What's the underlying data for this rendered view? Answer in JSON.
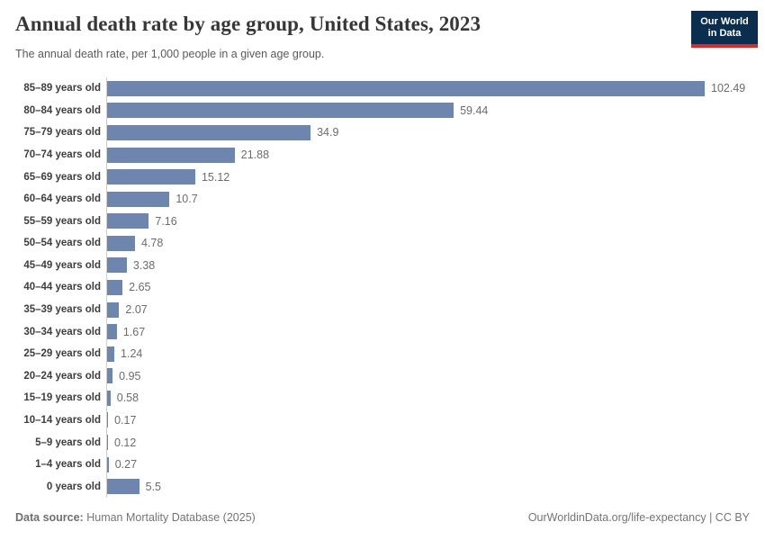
{
  "header": {
    "title": "Annual death rate by age group, United States, 2023",
    "subtitle": "The annual death rate, per 1,000 people in a given age group.",
    "logo": {
      "line1": "Our World",
      "line2": "in Data"
    }
  },
  "chart_data": {
    "type": "bar",
    "orientation": "horizontal",
    "title": "Annual death rate by age group, United States, 2023",
    "xlabel": "",
    "ylabel": "",
    "xlim": [
      0,
      102.49
    ],
    "grid": false,
    "legend": false,
    "bar_color": "#6e85ad",
    "categories": [
      "85–89 years old",
      "80–84 years old",
      "75–79 years old",
      "70–74 years old",
      "65–69 years old",
      "60–64 years old",
      "55–59 years old",
      "50–54 years old",
      "45–49 years old",
      "40–44 years old",
      "35–39 years old",
      "30–34 years old",
      "25–29 years old",
      "20–24 years old",
      "15–19 years old",
      "10–14 years old",
      "5–9 years old",
      "1–4 years old",
      "0 years old"
    ],
    "values": [
      102.49,
      59.44,
      34.9,
      21.88,
      15.12,
      10.7,
      7.16,
      4.78,
      3.38,
      2.65,
      2.07,
      1.67,
      1.24,
      0.95,
      0.58,
      0.17,
      0.12,
      0.27,
      5.5
    ],
    "value_labels": [
      "102.49",
      "59.44",
      "34.9",
      "21.88",
      "15.12",
      "10.7",
      "7.16",
      "4.78",
      "3.38",
      "2.65",
      "2.07",
      "1.67",
      "1.24",
      "0.95",
      "0.58",
      "0.17",
      "0.12",
      "0.27",
      "5.5"
    ]
  },
  "footer": {
    "datasource_label": "Data source:",
    "datasource_value": "Human Mortality Database (2025)",
    "right_text": "OurWorldinData.org/life-expectancy | CC BY"
  },
  "colors": {
    "bar": "#6e85ad",
    "axis_line": "#cfcfcf",
    "category_label": "#3d3d3d",
    "value_label": "#6c6c6c",
    "logo_navy": "#0b2e4e",
    "logo_red": "#cc322c"
  }
}
